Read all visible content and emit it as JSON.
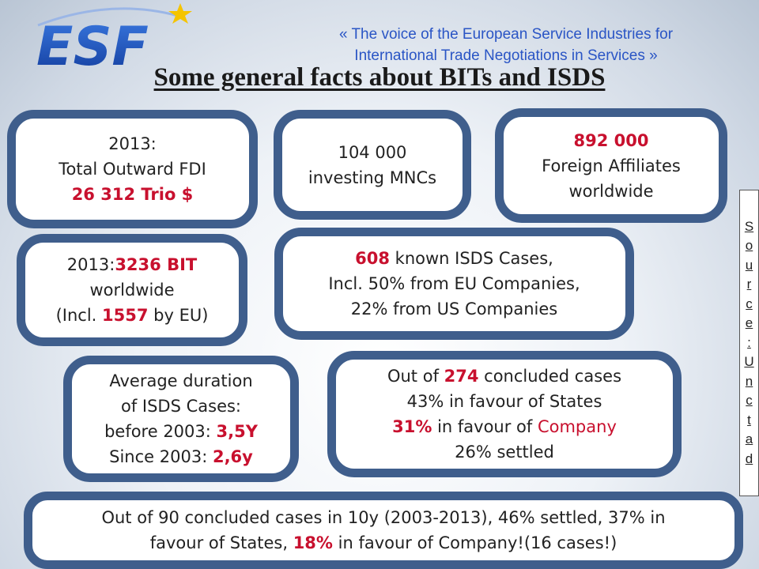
{
  "header": {
    "logo_text": "ESF",
    "tagline_line1": "« The voice of the European Service Industries for",
    "tagline_line2": "International Trade Negotiations in Services »",
    "brand_colors": {
      "logo_blue": "#1f4fbf",
      "star": "#f5c400"
    }
  },
  "title": "Some general facts about BITs and ISDS",
  "boxes": {
    "fdi": {
      "line1": "2013:",
      "line2": "Total Outward FDI",
      "value": "26 312 Trio $"
    },
    "mncs": {
      "value": "104 000",
      "label": "investing MNCs"
    },
    "affiliates": {
      "value": "892 000",
      "line2": "Foreign Affiliates",
      "line3": "worldwide"
    },
    "bit": {
      "prefix": "2013:",
      "value": "3236 BIT",
      "line2": "worldwide",
      "line3_a": "(Incl. ",
      "eu_value": "1557",
      "line3_b": " by EU)"
    },
    "isds": {
      "value": "608",
      "line1_rest": " known ISDS Cases,",
      "line2": "Incl. 50% from EU Companies,",
      "line3": "22% from US Companies"
    },
    "duration": {
      "line1": "Average duration",
      "line2": "of ISDS Cases:",
      "before_label": "before 2003: ",
      "before_value": "3,5Y",
      "since_label": "Since 2003: ",
      "since_value": "2,6y"
    },
    "concluded": {
      "prefix": "Out of ",
      "value": "274",
      "line1_rest": " concluded cases",
      "line2": "43% in favour of States",
      "pct": "31%",
      "line3_mid": " in favour of ",
      "company": "Company",
      "line4": "26% settled"
    },
    "summary": {
      "part1": "Out of 90 concluded cases in 10y (2003-2013), 46% settled, 37% in",
      "part2": "favour of States, ",
      "pct": "18%",
      "part3": " in favour of Company!(16 cases!)"
    }
  },
  "source_letters": [
    "S",
    "o",
    "u",
    "r",
    "c",
    "e",
    ":",
    "U",
    "n",
    "c",
    "t",
    "a",
    "d"
  ],
  "colors": {
    "box_border": "#3f5e8c",
    "highlight_red": "#c8102e",
    "tagline_blue": "#2a55c5"
  }
}
